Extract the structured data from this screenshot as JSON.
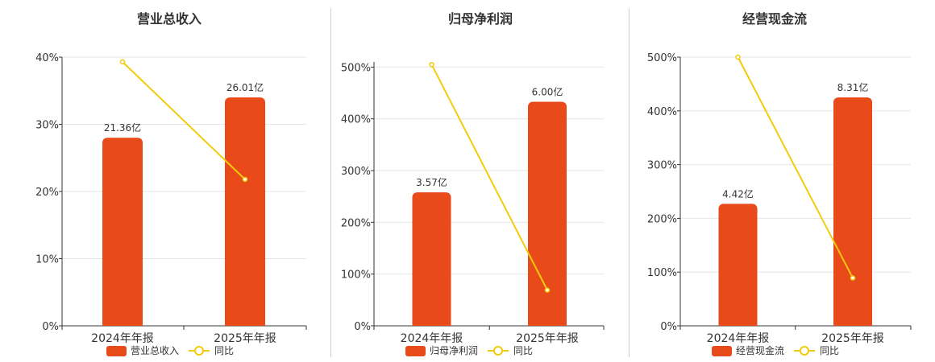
{
  "chart_data": [
    {
      "type": "bar",
      "title": "营业总收入",
      "categories": [
        "2024年年报",
        "2025年年报"
      ],
      "series": [
        {
          "name": "营业总收入",
          "type": "bar",
          "values": [
            28,
            34
          ],
          "labels": [
            "21.36亿",
            "26.01亿"
          ]
        },
        {
          "name": "同比",
          "type": "line",
          "values": [
            39.3,
            21.8
          ]
        }
      ],
      "yticks": [
        "0%",
        "10%",
        "20%",
        "30%",
        "40%"
      ],
      "ylim": [
        0,
        40
      ],
      "grid": true,
      "legend": "bottom"
    },
    {
      "type": "bar",
      "title": "归母净利润",
      "categories": [
        "2024年年报",
        "2025年年报"
      ],
      "series": [
        {
          "name": "归母净利润",
          "type": "bar",
          "values": [
            258,
            433
          ],
          "labels": [
            "3.57亿",
            "6.00亿"
          ]
        },
        {
          "name": "同比",
          "type": "line",
          "values": [
            505,
            69
          ]
        }
      ],
      "yticks": [
        "0%",
        "100%",
        "200%",
        "300%",
        "400%",
        "500%"
      ],
      "ylim": [
        0,
        510
      ],
      "grid": true,
      "legend": "bottom"
    },
    {
      "type": "bar",
      "title": "经营现金流",
      "categories": [
        "2024年年报",
        "2025年年报"
      ],
      "series": [
        {
          "name": "经营现金流",
          "type": "bar",
          "values": [
            227,
            425
          ],
          "labels": [
            "4.42亿",
            "8.31亿"
          ]
        },
        {
          "name": "同比",
          "type": "line",
          "values": [
            500,
            89
          ]
        }
      ],
      "yticks": [
        "0%",
        "100%",
        "200%",
        "300%",
        "400%",
        "500%"
      ],
      "ylim": [
        0,
        500
      ],
      "grid": true,
      "legend": "bottom"
    }
  ],
  "colors": {
    "bar": "#e84a1a",
    "line": "#f2cc0c",
    "grid": "#e2e6ee",
    "axis": "#333333",
    "text": "#333333"
  }
}
